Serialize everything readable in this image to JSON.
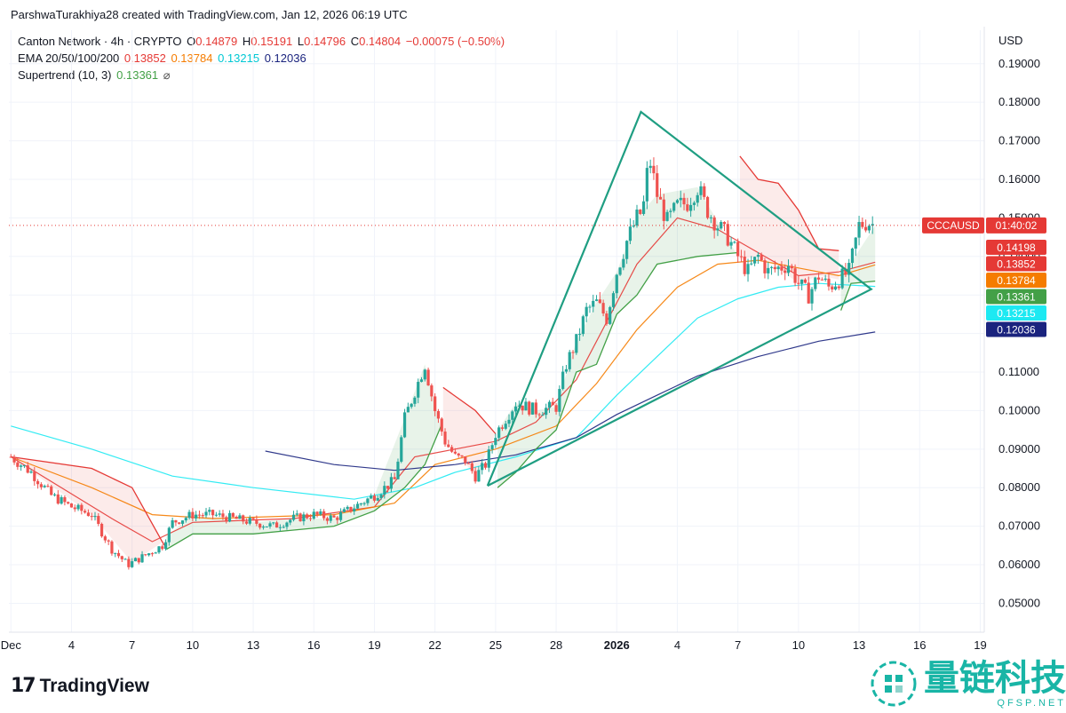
{
  "header": {
    "attribution": "ParshwaTurakhiya28 created with TradingView.com, Jan 12, 2026 06:19 UTC"
  },
  "legend": {
    "symbol": "Canton Network · 4h · CRYPTO",
    "o_label": "O",
    "o_value": "0.14879",
    "h_label": "H",
    "h_value": "0.15191",
    "l_label": "L",
    "l_value": "0.14796",
    "c_label": "C",
    "c_value": "0.14804",
    "change": "−0.00075 (−0.50%)",
    "ema_label": "EMA 20/50/100/200",
    "ema20": "0.13852",
    "ema50": "0.13784",
    "ema100": "0.13215",
    "ema200": "0.12036",
    "st_label": "Supertrend (10, 3)",
    "st_value": "0.13361",
    "st_icon": "⌀"
  },
  "axis_currency": "USD",
  "price_badges": {
    "ticker": "CCCAUSD",
    "countdown": "01:40:02"
  },
  "colors": {
    "up": "#26a69a",
    "down": "#ef5350",
    "ema20": "#e53935",
    "ema50": "#f57c00",
    "ema100": "#1de9f2",
    "ema200": "#1a237e",
    "supertrend_up": "#43a047",
    "supertrend_down": "#e53935",
    "triangle": "#1f9e82",
    "last_price": "#e53935"
  },
  "chart_data": {
    "type": "candlestick",
    "y_ticks": [
      "0.19000",
      "0.18000",
      "0.17000",
      "0.16000",
      "0.15000",
      "0.14000",
      "0.13000",
      "0.12000",
      "0.11000",
      "0.10000",
      "0.09000",
      "0.08000",
      "0.07000",
      "0.06000",
      "0.05000"
    ],
    "y_tick_values": [
      0.19,
      0.18,
      0.17,
      0.16,
      0.15,
      0.14,
      0.13,
      0.12,
      0.11,
      0.1,
      0.09,
      0.08,
      0.07,
      0.06,
      0.05
    ],
    "x_ticks": [
      "Dec",
      "4",
      "7",
      "10",
      "13",
      "16",
      "19",
      "22",
      "25",
      "28",
      "2026",
      "4",
      "7",
      "10",
      "13",
      "16",
      "19"
    ],
    "x_tick_days": [
      0,
      3,
      6,
      9,
      12,
      15,
      18,
      21,
      24,
      27,
      30,
      33,
      36,
      39,
      42,
      45,
      48
    ],
    "x_range_days": [
      -0.1,
      48.2
    ],
    "y_range": [
      0.0425,
      0.1987
    ],
    "last_price": 0.14804,
    "price_labels": [
      {
        "value": "0.14198",
        "color": "#e53935"
      },
      {
        "value": "0.13852",
        "color": "#e53935"
      },
      {
        "value": "0.13784",
        "color": "#f57c00"
      },
      {
        "value": "0.13361",
        "color": "#43a047"
      },
      {
        "value": "0.13215",
        "color": "#1de9f2"
      },
      {
        "value": "0.12036",
        "color": "#1a237e"
      }
    ],
    "close_path": [
      [
        0,
        0.088
      ],
      [
        1,
        0.084
      ],
      [
        2,
        0.078
      ],
      [
        3,
        0.075
      ],
      [
        4,
        0.073
      ],
      [
        5,
        0.064
      ],
      [
        5.8,
        0.06
      ],
      [
        6.5,
        0.062
      ],
      [
        7.5,
        0.065
      ],
      [
        8,
        0.071
      ],
      [
        9,
        0.073
      ],
      [
        10,
        0.073
      ],
      [
        11,
        0.072
      ],
      [
        12,
        0.071
      ],
      [
        13,
        0.07
      ],
      [
        14,
        0.072
      ],
      [
        15,
        0.073
      ],
      [
        16,
        0.072
      ],
      [
        17,
        0.075
      ],
      [
        18,
        0.078
      ],
      [
        19,
        0.082
      ],
      [
        19.5,
        0.098
      ],
      [
        20,
        0.105
      ],
      [
        20.5,
        0.112
      ],
      [
        21,
        0.1
      ],
      [
        21.5,
        0.092
      ],
      [
        22,
        0.088
      ],
      [
        22.5,
        0.087
      ],
      [
        23,
        0.083
      ],
      [
        23.5,
        0.086
      ],
      [
        24,
        0.094
      ],
      [
        25,
        0.102
      ],
      [
        26,
        0.1
      ],
      [
        27,
        0.101
      ],
      [
        27.5,
        0.112
      ],
      [
        28,
        0.118
      ],
      [
        28.5,
        0.126
      ],
      [
        29,
        0.128
      ],
      [
        29.5,
        0.124
      ],
      [
        30,
        0.136
      ],
      [
        30.5,
        0.144
      ],
      [
        31,
        0.15
      ],
      [
        31.3,
        0.152
      ],
      [
        31.6,
        0.166
      ],
      [
        32,
        0.156
      ],
      [
        32.5,
        0.149
      ],
      [
        33,
        0.153
      ],
      [
        33.5,
        0.154
      ],
      [
        34,
        0.158
      ],
      [
        34.5,
        0.152
      ],
      [
        35,
        0.148
      ],
      [
        35.5,
        0.145
      ],
      [
        36,
        0.14
      ],
      [
        36.5,
        0.136
      ],
      [
        37,
        0.14
      ],
      [
        37.5,
        0.136
      ],
      [
        38,
        0.137
      ],
      [
        38.5,
        0.138
      ],
      [
        39,
        0.133
      ],
      [
        39.5,
        0.13
      ],
      [
        40,
        0.135
      ],
      [
        40.5,
        0.132
      ],
      [
        41,
        0.134
      ],
      [
        41.5,
        0.136
      ],
      [
        42,
        0.148
      ],
      [
        42.4,
        0.149
      ],
      [
        42.8,
        0.148
      ]
    ],
    "emas": [
      {
        "name": "EMA 20",
        "color": "#e53935",
        "points": [
          [
            0,
            0.088
          ],
          [
            5,
            0.072
          ],
          [
            7,
            0.066
          ],
          [
            9,
            0.071
          ],
          [
            14,
            0.072
          ],
          [
            18,
            0.075
          ],
          [
            20,
            0.088
          ],
          [
            22,
            0.09
          ],
          [
            24,
            0.092
          ],
          [
            26,
            0.097
          ],
          [
            28,
            0.108
          ],
          [
            30,
            0.128
          ],
          [
            31,
            0.138
          ],
          [
            33,
            0.15
          ],
          [
            35,
            0.147
          ],
          [
            37,
            0.141
          ],
          [
            39,
            0.135
          ],
          [
            41,
            0.136
          ],
          [
            42.8,
            0.1385
          ]
        ]
      },
      {
        "name": "EMA 50",
        "color": "#f57c00",
        "points": [
          [
            0,
            0.088
          ],
          [
            4,
            0.08
          ],
          [
            7,
            0.073
          ],
          [
            10,
            0.072
          ],
          [
            16,
            0.073
          ],
          [
            19,
            0.076
          ],
          [
            21,
            0.086
          ],
          [
            24,
            0.09
          ],
          [
            27,
            0.096
          ],
          [
            29,
            0.107
          ],
          [
            31,
            0.121
          ],
          [
            33,
            0.132
          ],
          [
            35,
            0.138
          ],
          [
            37,
            0.139
          ],
          [
            39,
            0.137
          ],
          [
            41,
            0.135
          ],
          [
            42.8,
            0.1378
          ]
        ]
      },
      {
        "name": "EMA 100",
        "color": "#1de9f2",
        "points": [
          [
            0,
            0.096
          ],
          [
            4,
            0.09
          ],
          [
            8,
            0.083
          ],
          [
            12,
            0.08
          ],
          [
            17,
            0.077
          ],
          [
            20,
            0.08
          ],
          [
            22,
            0.084
          ],
          [
            25,
            0.088
          ],
          [
            28,
            0.093
          ],
          [
            30,
            0.104
          ],
          [
            32,
            0.114
          ],
          [
            34,
            0.124
          ],
          [
            36,
            0.129
          ],
          [
            38,
            0.132
          ],
          [
            40,
            0.133
          ],
          [
            42.8,
            0.1322
          ]
        ]
      },
      {
        "name": "EMA 200",
        "color": "#1a237e",
        "points": [
          [
            12.6,
            0.0895
          ],
          [
            16,
            0.086
          ],
          [
            19,
            0.0845
          ],
          [
            22,
            0.086
          ],
          [
            25,
            0.0885
          ],
          [
            28,
            0.093
          ],
          [
            30,
            0.099
          ],
          [
            32,
            0.104
          ],
          [
            34,
            0.109
          ],
          [
            37,
            0.114
          ],
          [
            40,
            0.118
          ],
          [
            42.8,
            0.1204
          ]
        ]
      }
    ],
    "supertrend": [
      {
        "trend": "down",
        "points": [
          [
            0,
            0.088
          ],
          [
            4,
            0.085
          ],
          [
            6,
            0.08
          ],
          [
            7.6,
            0.065
          ]
        ]
      },
      {
        "trend": "up",
        "points": [
          [
            7.7,
            0.064
          ],
          [
            9,
            0.068
          ],
          [
            12,
            0.068
          ],
          [
            14,
            0.069
          ],
          [
            16,
            0.07
          ],
          [
            18,
            0.074
          ],
          [
            19.5,
            0.08
          ],
          [
            20.5,
            0.086
          ],
          [
            21.3,
            0.096
          ]
        ]
      },
      {
        "trend": "down",
        "points": [
          [
            21.4,
            0.106
          ],
          [
            23,
            0.1
          ],
          [
            24,
            0.094
          ]
        ]
      },
      {
        "trend": "up",
        "points": [
          [
            24.1,
            0.08
          ],
          [
            25,
            0.084
          ],
          [
            26,
            0.09
          ],
          [
            27,
            0.095
          ],
          [
            28,
            0.11
          ],
          [
            29,
            0.112
          ],
          [
            30,
            0.125
          ],
          [
            31,
            0.13
          ],
          [
            32,
            0.138
          ],
          [
            34,
            0.14
          ],
          [
            36,
            0.141
          ]
        ]
      },
      {
        "trend": "down",
        "points": [
          [
            36.1,
            0.166
          ],
          [
            37,
            0.16
          ],
          [
            38,
            0.159
          ],
          [
            39,
            0.152
          ],
          [
            40,
            0.142
          ],
          [
            41,
            0.1415
          ]
        ]
      },
      {
        "trend": "up",
        "points": [
          [
            41.1,
            0.126
          ],
          [
            41.6,
            0.133
          ],
          [
            42.8,
            0.1336
          ]
        ]
      }
    ],
    "triangle": [
      [
        23.6,
        0.0805
      ],
      [
        31.2,
        0.1775
      ],
      [
        42.6,
        0.1315
      ],
      [
        23.6,
        0.0805
      ]
    ]
  }
}
